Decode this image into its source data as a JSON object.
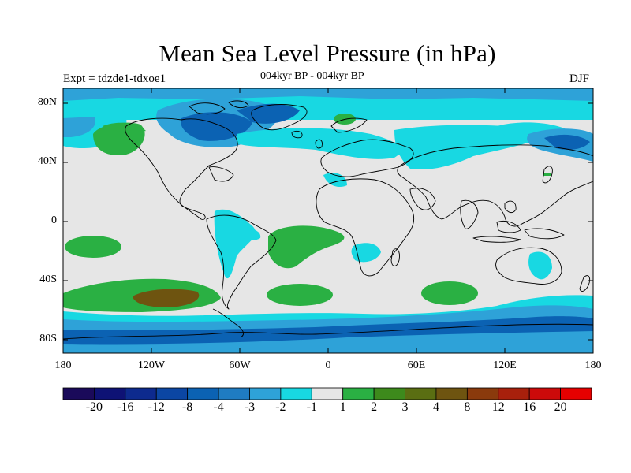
{
  "title": "Mean Sea Level Pressure (in hPa)",
  "left_label": "Expt = tdzde1-tdxoe1",
  "center_label": "004kyr BP - 004kyr BP",
  "right_label": "DJF",
  "lat_ticks": [
    "80N",
    "40N",
    "0",
    "40S",
    "80S"
  ],
  "lon_ticks": [
    "180",
    "120W",
    "60W",
    "0",
    "60E",
    "120E",
    "180"
  ],
  "colorbar": {
    "labels": [
      "-20",
      "-16",
      "-12",
      "-8",
      "-4",
      "-3",
      "-2",
      "-1",
      "1",
      "2",
      "3",
      "4",
      "8",
      "12",
      "16",
      "20"
    ],
    "colors": [
      "#1a0a5a",
      "#0e1275",
      "#0d2a8e",
      "#0b46a3",
      "#0b62b3",
      "#1f7cc2",
      "#2ea2d8",
      "#18d8e2",
      "#e6e6e6",
      "#2ab043",
      "#3d8a1c",
      "#5a6e12",
      "#6e5410",
      "#8a3a0c",
      "#a8200c",
      "#cc0a0a",
      "#e60000"
    ]
  },
  "palette": {
    "land_bg": "#e6e6e6",
    "blue_light": "#18d8e2",
    "blue_mid": "#2ea2d8",
    "blue_dark": "#0b62b3",
    "blue_darker": "#0b46a3",
    "green": "#2ab043",
    "brown": "#6e5410"
  }
}
